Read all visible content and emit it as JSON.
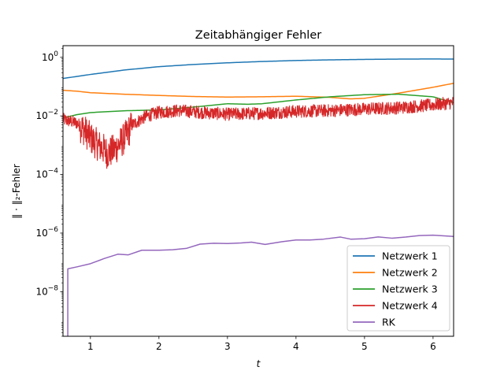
{
  "chart_data": {
    "type": "line",
    "title": "Zeitabhängiger Fehler",
    "xlabel": "t",
    "ylabel": "‖ · ‖₂-Fehler",
    "xlim": [
      0.6,
      6.3
    ],
    "ylim": [
      3e-10,
      2.5
    ],
    "yscale": "log",
    "x_ticks": [
      1,
      2,
      3,
      4,
      5,
      6
    ],
    "y_ticks": [
      {
        "value": 1,
        "mantissa": "10",
        "exp": "0"
      },
      {
        "value": 0.01,
        "mantissa": "10",
        "exp": "−2"
      },
      {
        "value": 0.0001,
        "mantissa": "10",
        "exp": "−4"
      },
      {
        "value": 1e-06,
        "mantissa": "10",
        "exp": "−6"
      },
      {
        "value": 1e-08,
        "mantissa": "10",
        "exp": "−8"
      }
    ],
    "grid": false,
    "legend_position": "lower-right",
    "series": [
      {
        "name": "Netzwerk 1",
        "color": "#1f77b4",
        "style": "smooth",
        "x": [
          0.6,
          1.0,
          1.5,
          2.0,
          2.5,
          3.0,
          3.5,
          4.0,
          4.5,
          5.0,
          5.5,
          6.0,
          6.3
        ],
        "y": [
          0.19,
          0.26,
          0.37,
          0.48,
          0.57,
          0.65,
          0.72,
          0.78,
          0.82,
          0.85,
          0.87,
          0.88,
          0.87
        ]
      },
      {
        "name": "Netzwerk 2",
        "color": "#ff7f0e",
        "style": "smooth",
        "x": [
          0.6,
          0.8,
          1.0,
          1.5,
          2.0,
          2.5,
          3.0,
          3.5,
          4.0,
          4.5,
          4.8,
          5.0,
          5.5,
          6.0,
          6.3
        ],
        "y": [
          0.075,
          0.07,
          0.062,
          0.055,
          0.05,
          0.046,
          0.044,
          0.045,
          0.047,
          0.043,
          0.038,
          0.04,
          0.06,
          0.095,
          0.13
        ]
      },
      {
        "name": "Netzwerk 3",
        "color": "#2ca02c",
        "style": "smooth",
        "x": [
          0.6,
          0.8,
          1.0,
          1.5,
          2.0,
          2.5,
          3.0,
          3.3,
          3.5,
          4.0,
          4.5,
          5.0,
          5.5,
          6.0,
          6.3
        ],
        "y": [
          0.0085,
          0.011,
          0.013,
          0.015,
          0.016,
          0.02,
          0.026,
          0.025,
          0.026,
          0.035,
          0.045,
          0.053,
          0.055,
          0.045,
          0.028
        ]
      },
      {
        "name": "Netzwerk 4",
        "color": "#d62728",
        "style": "noisy",
        "x": [
          0.6,
          0.8,
          0.9,
          1.0,
          1.1,
          1.2,
          1.25,
          1.35,
          1.5,
          1.6,
          1.8,
          2.0,
          2.3,
          2.6,
          3.0,
          3.5,
          4.0,
          4.5,
          5.0,
          5.5,
          6.0,
          6.3
        ],
        "y": [
          0.008,
          0.006,
          0.004,
          0.002,
          0.0012,
          0.0008,
          0.0006,
          0.0008,
          0.002,
          0.005,
          0.01,
          0.014,
          0.016,
          0.014,
          0.012,
          0.013,
          0.015,
          0.016,
          0.018,
          0.02,
          0.025,
          0.03
        ]
      },
      {
        "name": "RK",
        "color": "#9467bd",
        "style": "piecewise",
        "x": [
          0.67,
          0.67,
          0.8,
          1.0,
          1.2,
          1.4,
          1.55,
          1.75,
          2.0,
          2.2,
          2.4,
          2.6,
          2.8,
          3.0,
          3.2,
          3.35,
          3.55,
          3.8,
          4.0,
          4.2,
          4.4,
          4.65,
          4.8,
          5.0,
          5.2,
          5.4,
          5.6,
          5.8,
          6.0,
          6.3
        ],
        "y": [
          3e-10,
          6e-08,
          7e-08,
          9e-08,
          1.35e-07,
          1.9e-07,
          1.8e-07,
          2.6e-07,
          2.6e-07,
          2.7e-07,
          3e-07,
          4.2e-07,
          4.5e-07,
          4.4e-07,
          4.6e-07,
          4.9e-07,
          4.1e-07,
          5.1e-07,
          5.8e-07,
          5.8e-07,
          6.2e-07,
          7.3e-07,
          6.2e-07,
          6.4e-07,
          7.4e-07,
          6.7e-07,
          7.3e-07,
          8.2e-07,
          8.5e-07,
          7.7e-07
        ]
      }
    ]
  }
}
